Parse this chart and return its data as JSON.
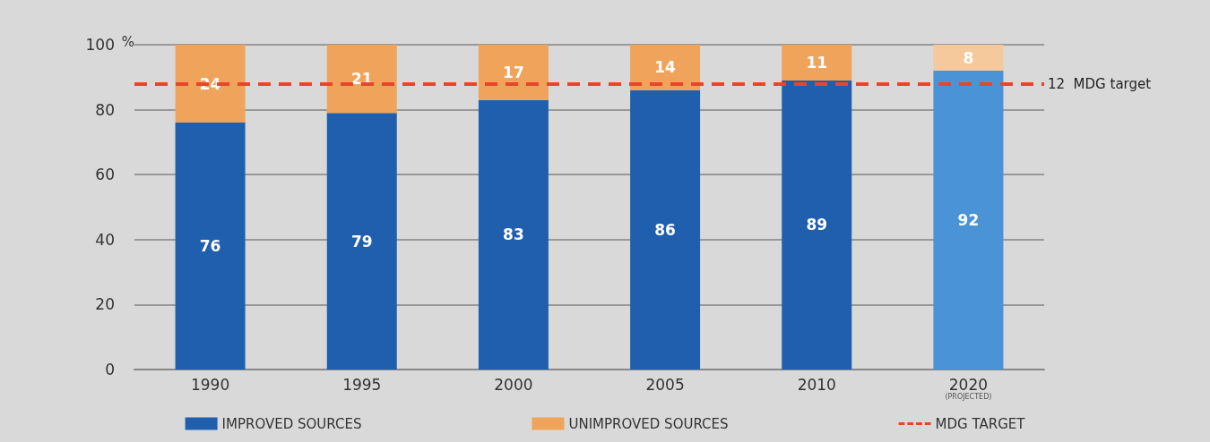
{
  "chart_data": {
    "type": "bar",
    "stacked": true,
    "ylabel": "%",
    "categories": [
      "1990",
      "1995",
      "2000",
      "2005",
      "2010",
      "2020\n(PROJECTED)"
    ],
    "series": [
      {
        "name": "IMPROVED SOURCES",
        "color": "#1f5fae",
        "colors": [
          "#1f5fae",
          "#1f5fae",
          "#1f5fae",
          "#1f5fae",
          "#1f5fae",
          "#4a93d6"
        ],
        "values": [
          76,
          79,
          83,
          86,
          89,
          92
        ]
      },
      {
        "name": "UNIMPROVED SOURCES",
        "color": "#f0a35a",
        "colors": [
          "#f0a35a",
          "#f0a35a",
          "#f0a35a",
          "#f0a35a",
          "#f0a35a",
          "#f5c99b"
        ],
        "values": [
          24,
          21,
          17,
          14,
          11,
          8
        ]
      }
    ],
    "ylim": [
      0,
      100
    ],
    "yticks": [
      0,
      20,
      40,
      60,
      80,
      100
    ],
    "grid": "y",
    "data_labels": true,
    "legend": "bottom",
    "ref_lines": [
      {
        "axis": "y",
        "value": 88,
        "label": "12  MDG target",
        "color": "#e8452a",
        "line_style": "dashed"
      }
    ],
    "annotations": [
      "MDG TARGET"
    ]
  }
}
